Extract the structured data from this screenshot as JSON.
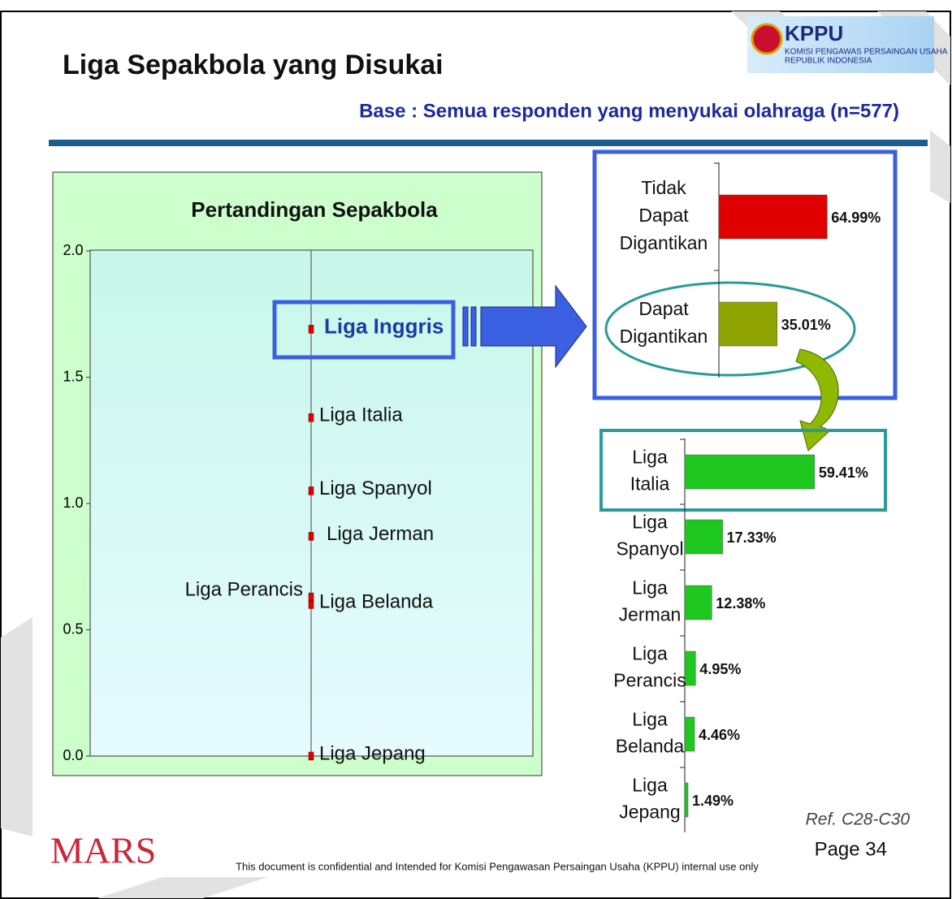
{
  "header": {
    "title": "Liga Sepakbola yang Disukai",
    "base": "Base : Semua responden yang menyukai olahraga (n=577)",
    "logo": {
      "name": "KPPU",
      "line1": "KOMISI PENGAWAS PERSAINGAN USAHA",
      "line2": "REPUBLIK INDONESIA"
    }
  },
  "chart_data": [
    {
      "type": "dot",
      "title": "Pertandingan Sepakbola",
      "categories": [
        "Liga Inggris",
        "Liga Italia",
        "Liga Spanyol",
        "Liga Jerman",
        "Liga Perancis",
        "Liga Belanda",
        "Liga Jepang"
      ],
      "values": [
        1.69,
        1.34,
        1.05,
        0.87,
        0.63,
        0.6,
        0.0
      ],
      "color": "#e00000",
      "ylim": [
        0,
        2
      ],
      "yticks": [
        {
          "value": 0,
          "label": "0.0"
        },
        {
          "value": 0.5,
          "label": "0.5"
        },
        {
          "value": 1,
          "label": "1.0"
        },
        {
          "value": 1.5,
          "label": "1.5"
        },
        {
          "value": 2,
          "label": "2.0"
        }
      ]
    },
    {
      "type": "hbar",
      "categories": [
        "Tidak Dapat Digantikan",
        "Dapat Digantikan"
      ],
      "values": [
        64.99,
        35.01
      ],
      "value_labels": [
        "64.99%",
        "35.01%"
      ],
      "colors": [
        "#e00000",
        "#8fa400"
      ],
      "xlim": [
        0,
        100
      ]
    },
    {
      "type": "hbar",
      "categories": [
        "Liga Italia",
        "Liga Spanyol",
        "Liga Jerman",
        "Liga Perancis",
        "Liga Belanda",
        "Liga Jepang"
      ],
      "values": [
        59.41,
        17.33,
        12.38,
        4.95,
        4.46,
        1.49
      ],
      "value_labels": [
        "59.41%",
        "17.33%",
        "12.38%",
        "4.95%",
        "4.46%",
        "1.49%"
      ],
      "colors": [
        "#1fc81f",
        "#1fc81f",
        "#1fc81f",
        "#1fc81f",
        "#1fc81f",
        "#1fc81f"
      ],
      "xlim": [
        0,
        100
      ]
    }
  ],
  "footer": {
    "brand": "MARS",
    "note": "This document is confidential and Intended for Komisi Pengawasan Persaingan Usaha (KPPU) internal use only",
    "ref": "Ref. C28-C30",
    "page": "Page 34"
  }
}
